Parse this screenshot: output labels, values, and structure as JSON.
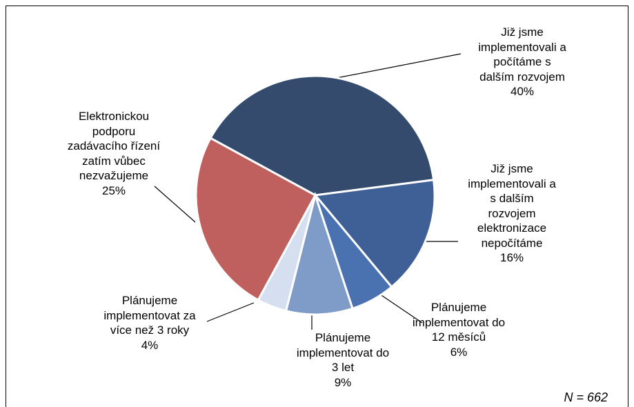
{
  "chart_data": {
    "type": "pie",
    "categories": [
      "Již jsme\nimplementovali a\npočítáme s\ndalším rozvojem",
      "Již jsme\nimplementovali a\ns dalším\nrozvojem\nelektronizace\nnepočítáme",
      "Plánujeme\nimplementovat do\n12 měsíců",
      "Plánujeme\nimplementovat do\n3 let",
      "Plánujeme\nimplementovat za\nvíce než 3 roky",
      "Elektronickou\npodporu\nzadávacího řízení\nzatím vůbec\nnezvažujeme"
    ],
    "values": [
      40,
      16,
      6,
      9,
      4,
      25
    ],
    "value_labels": [
      "40%",
      "16%",
      "6%",
      "9%",
      "4%",
      "25%"
    ],
    "colors": [
      "#344b6e",
      "#3f6096",
      "#4a72b0",
      "#7f9bc8",
      "#d5dff0",
      "#c0605e"
    ],
    "annotation": "N = 662"
  }
}
